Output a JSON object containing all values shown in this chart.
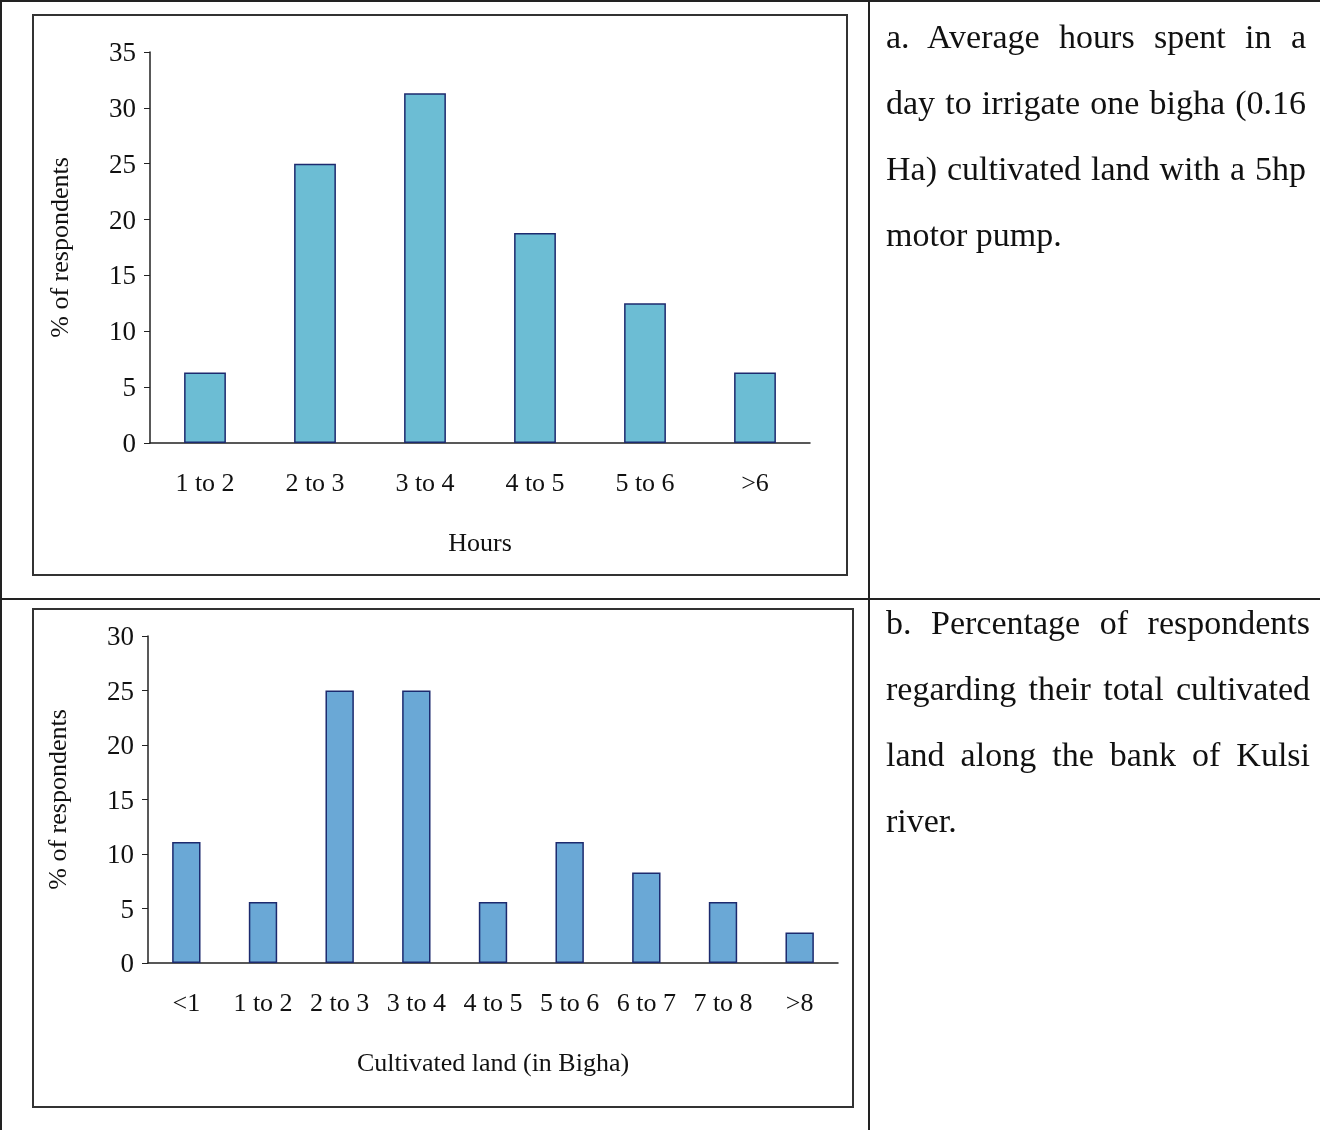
{
  "chart_data": [
    {
      "type": "bar",
      "xlabel": "Hours",
      "ylabel": "% of respondents",
      "categories": [
        "1 to 2",
        "2 to 3",
        "3 to 4",
        "4 to 5",
        "5 to 6",
        ">6"
      ],
      "values": [
        6.3,
        25,
        31.3,
        18.8,
        12.5,
        6.3
      ],
      "color": "#6cbdd4",
      "ylim": [
        0,
        35
      ],
      "yticks": [
        0,
        5,
        10,
        15,
        20,
        25,
        30,
        35
      ],
      "annotations": [
        "a. Average hours spent in a day to irrigate one bigha (0.16 Ha) cultivated land with a 5hp motor pump."
      ]
    },
    {
      "type": "bar",
      "xlabel": "Cultivated land (in Bigha)",
      "ylabel": "% of respondents",
      "categories": [
        "<1",
        "1 to 2",
        "2 to 3",
        "3 to 4",
        "4 to 5",
        "5 to 6",
        "6 to 7",
        "7 to 8",
        ">8"
      ],
      "values": [
        11.1,
        5.6,
        25,
        25,
        5.6,
        11.1,
        8.3,
        5.6,
        2.8
      ],
      "color": "#6aa8d6",
      "ylim": [
        0,
        30
      ],
      "yticks": [
        0,
        5,
        10,
        15,
        20,
        25,
        30
      ],
      "annotations": [
        "b. Percentage of respondents regarding their total cultivated land along the bank of Kulsi river."
      ]
    }
  ]
}
